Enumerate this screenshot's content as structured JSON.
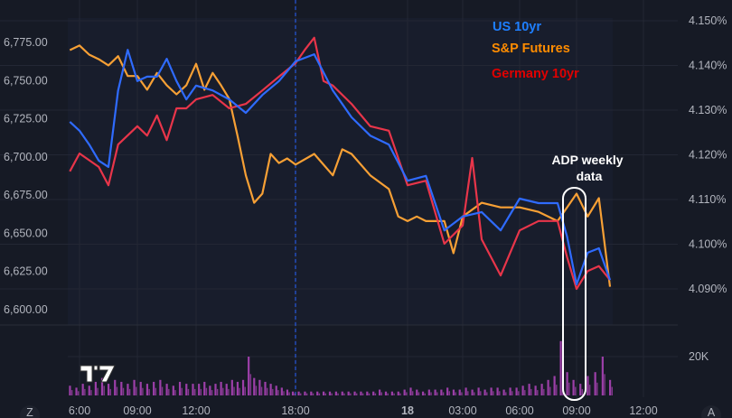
{
  "chart_data": {
    "type": "line",
    "grid": true,
    "legend_placement": "top-right",
    "left_axis": {
      "ticks": [
        "6,775.00",
        "6,750.00",
        "6,725.00",
        "6,700.00",
        "6,675.00",
        "6,650.00",
        "6,625.00",
        "6,600.00"
      ],
      "range": [
        6600,
        6775
      ]
    },
    "right_axis": {
      "ticks": [
        "4.150%",
        "4.140%",
        "4.130%",
        "4.120%",
        "4.110%",
        "4.100%",
        "4.090%"
      ],
      "range": [
        4.09,
        4.15
      ]
    },
    "x_ticks": [
      "6:00",
      "09:00",
      "12:00",
      "18:00",
      "18",
      "03:00",
      "06:00",
      "09:00",
      "12:00"
    ],
    "series": [
      {
        "name": "US 10yr",
        "axis": "right",
        "color": "#2f6bff",
        "legend_color": "#1e7fff",
        "points": [
          [
            "17 05:30",
            4.1274
          ],
          [
            "17 06:00",
            4.1254
          ],
          [
            "17 06:30",
            4.1223
          ],
          [
            "17 07:00",
            4.1187
          ],
          [
            "17 07:30",
            4.1173
          ],
          [
            "17 08:00",
            4.1344
          ],
          [
            "17 08:30",
            4.1435
          ],
          [
            "17 09:00",
            4.1365
          ],
          [
            "17 09:30",
            4.1375
          ],
          [
            "17 10:00",
            4.1375
          ],
          [
            "17 10:30",
            4.1415
          ],
          [
            "17 11:00",
            4.1365
          ],
          [
            "17 11:30",
            4.1324
          ],
          [
            "17 12:00",
            4.1355
          ],
          [
            "17 13:00",
            4.1344
          ],
          [
            "17 14:00",
            4.1324
          ],
          [
            "17 15:00",
            4.1294
          ],
          [
            "17 16:00",
            4.1334
          ],
          [
            "17 17:00",
            4.1365
          ],
          [
            "17 18:00",
            4.1409
          ],
          [
            "17 19:00",
            4.1425
          ],
          [
            "17 20:00",
            4.1344
          ],
          [
            "17 21:00",
            4.1284
          ],
          [
            "17 22:00",
            4.1243
          ],
          [
            "17 23:00",
            4.1223
          ],
          [
            "18 00:00",
            4.1142
          ],
          [
            "18 01:00",
            4.1153
          ],
          [
            "18 02:00",
            4.1031
          ],
          [
            "18 03:00",
            4.1062
          ],
          [
            "18 04:00",
            4.1072
          ],
          [
            "18 05:00",
            4.1031
          ],
          [
            "18 06:00",
            4.1102
          ],
          [
            "18 07:00",
            4.1092
          ],
          [
            "18 08:00",
            4.1092
          ],
          [
            "18 08:30",
            4.1017
          ],
          [
            "18 09:00",
            4.091
          ],
          [
            "18 09:30",
            4.0981
          ],
          [
            "18 10:00",
            4.0991
          ],
          [
            "18 10:30",
            4.092
          ]
        ]
      },
      {
        "name": "S&P Futures",
        "axis": "left",
        "color": "#f7a035",
        "legend_color": "#ff8c00",
        "points": [
          [
            "17 05:30",
            6770
          ],
          [
            "17 06:00",
            6773
          ],
          [
            "17 06:30",
            6767
          ],
          [
            "17 07:00",
            6764
          ],
          [
            "17 07:30",
            6760
          ],
          [
            "17 08:00",
            6766
          ],
          [
            "17 08:30",
            6753
          ],
          [
            "17 09:00",
            6753
          ],
          [
            "17 09:30",
            6744
          ],
          [
            "17 10:00",
            6755
          ],
          [
            "17 10:30",
            6747
          ],
          [
            "17 11:00",
            6741
          ],
          [
            "17 11:30",
            6747
          ],
          [
            "17 12:00",
            6761
          ],
          [
            "17 12:30",
            6744
          ],
          [
            "17 13:00",
            6755
          ],
          [
            "17 13:30",
            6747
          ],
          [
            "17 14:00",
            6738
          ],
          [
            "17 14:30",
            6714
          ],
          [
            "17 15:00",
            6688
          ],
          [
            "17 15:30",
            6670
          ],
          [
            "17 16:00",
            6676
          ],
          [
            "17 16:30",
            6702
          ],
          [
            "17 17:00",
            6696
          ],
          [
            "17 17:30",
            6699
          ],
          [
            "17 18:00",
            6695
          ],
          [
            "17 19:00",
            6702
          ],
          [
            "17 20:00",
            6688
          ],
          [
            "17 20:30",
            6705
          ],
          [
            "17 21:00",
            6702
          ],
          [
            "17 22:00",
            6688
          ],
          [
            "17 23:00",
            6679
          ],
          [
            "17 23:30",
            6661
          ],
          [
            "18 00:00",
            6658
          ],
          [
            "18 00:30",
            6661
          ],
          [
            "18 01:00",
            6658
          ],
          [
            "18 02:00",
            6658
          ],
          [
            "18 02:30",
            6637
          ],
          [
            "18 03:00",
            6661
          ],
          [
            "18 04:00",
            6670
          ],
          [
            "18 05:00",
            6667
          ],
          [
            "18 06:00",
            6667
          ],
          [
            "18 07:00",
            6664
          ],
          [
            "18 08:00",
            6658
          ],
          [
            "18 08:30",
            6667
          ],
          [
            "18 09:00",
            6676
          ],
          [
            "18 09:30",
            6661
          ],
          [
            "18 10:00",
            6673
          ],
          [
            "18 10:30",
            6615
          ]
        ]
      },
      {
        "name": "Germany 10yr",
        "axis": "right",
        "color": "#e8354a",
        "legend_color": "#e00000",
        "points": [
          [
            "17 05:30",
            4.1163
          ],
          [
            "17 06:00",
            4.1203
          ],
          [
            "17 07:00",
            4.1173
          ],
          [
            "17 07:30",
            4.1132
          ],
          [
            "17 08:00",
            4.1223
          ],
          [
            "17 09:00",
            4.1264
          ],
          [
            "17 09:30",
            4.1243
          ],
          [
            "17 10:00",
            4.1288
          ],
          [
            "17 10:30",
            4.1233
          ],
          [
            "17 11:00",
            4.1304
          ],
          [
            "17 11:30",
            4.1304
          ],
          [
            "17 12:00",
            4.1324
          ],
          [
            "17 13:00",
            4.1334
          ],
          [
            "17 14:00",
            4.1304
          ],
          [
            "17 15:00",
            4.1314
          ],
          [
            "17 16:00",
            4.1344
          ],
          [
            "17 17:00",
            4.1375
          ],
          [
            "17 18:00",
            4.1405
          ],
          [
            "17 18:30",
            4.1435
          ],
          [
            "17 19:00",
            4.1462
          ],
          [
            "17 19:30",
            4.1365
          ],
          [
            "17 20:00",
            4.1355
          ],
          [
            "17 21:00",
            4.1314
          ],
          [
            "17 22:00",
            4.1264
          ],
          [
            "17 23:00",
            4.1254
          ],
          [
            "18 00:00",
            4.1132
          ],
          [
            "18 01:00",
            4.1142
          ],
          [
            "18 02:00",
            4.1001
          ],
          [
            "18 03:00",
            4.1042
          ],
          [
            "18 03:30",
            4.1193
          ],
          [
            "18 04:00",
            4.1011
          ],
          [
            "18 05:00",
            4.093
          ],
          [
            "18 06:00",
            4.1031
          ],
          [
            "18 07:00",
            4.1052
          ],
          [
            "18 08:00",
            4.1052
          ],
          [
            "18 08:30",
            4.0971
          ],
          [
            "18 09:00",
            4.09
          ],
          [
            "18 09:30",
            4.094
          ],
          [
            "18 10:00",
            4.0951
          ],
          [
            "18 10:30",
            4.092
          ]
        ]
      }
    ],
    "volume": {
      "color": "#9c3fa8",
      "axis_label": "20K",
      "start": "17 05:30",
      "step_minutes": 20,
      "values_k": [
        5,
        4,
        6,
        5,
        7,
        9,
        6,
        8,
        7,
        6,
        8,
        7,
        6,
        7,
        8,
        6,
        5,
        7,
        6,
        6,
        6,
        7,
        5,
        6,
        7,
        6,
        8,
        7,
        8,
        20,
        9,
        8,
        7,
        6,
        5,
        4,
        3,
        2,
        2,
        2,
        2,
        2,
        2,
        2,
        2,
        2,
        2,
        2,
        2,
        2,
        2,
        3,
        2,
        2,
        2,
        3,
        4,
        3,
        2,
        3,
        3,
        3,
        4,
        3,
        3,
        4,
        3,
        4,
        3,
        4,
        4,
        3,
        4,
        4,
        5,
        6,
        5,
        6,
        8,
        10,
        28,
        12,
        8,
        6,
        10,
        12,
        20,
        8
      ]
    },
    "annotation": {
      "text_line1": "ADP weekly data",
      "text_line2": "data",
      "label": "ADP weekly",
      "at": "18 09:00"
    },
    "session_break": "17 18:00"
  },
  "ui": {
    "logo": "TV",
    "left_button": "Z",
    "right_button": "A"
  }
}
